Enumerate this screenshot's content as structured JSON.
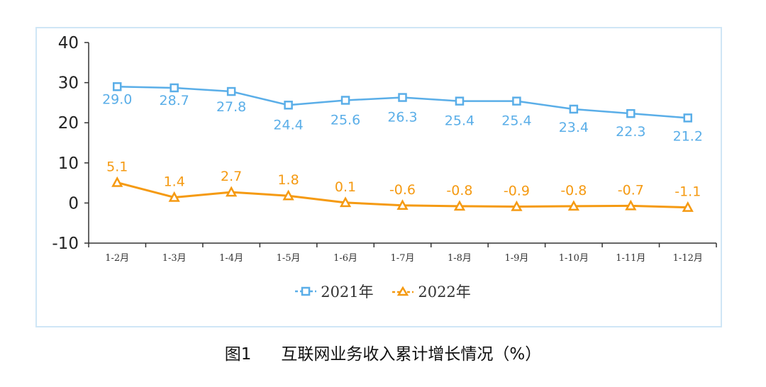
{
  "chart_data": {
    "type": "line",
    "categories": [
      "1-2月",
      "1-3月",
      "1-4月",
      "1-5月",
      "1-6月",
      "1-7月",
      "1-8月",
      "1-9月",
      "1-10月",
      "1-11月",
      "1-12月"
    ],
    "series": [
      {
        "name": "2021年",
        "color": "#5aaee8",
        "marker": "square",
        "values": [
          29.0,
          28.7,
          27.8,
          24.4,
          25.6,
          26.3,
          25.4,
          25.4,
          23.4,
          22.3,
          21.2
        ]
      },
      {
        "name": "2022年",
        "color": "#f59a12",
        "marker": "triangle",
        "values": [
          5.1,
          1.4,
          2.7,
          1.8,
          0.1,
          -0.6,
          -0.8,
          -0.9,
          -0.8,
          -0.7,
          -1.1
        ]
      }
    ],
    "ylim": [
      -10,
      40
    ],
    "yticks": [
      40,
      30,
      20,
      10,
      0,
      -10
    ],
    "grid": false,
    "legend": "bottom",
    "title": "",
    "xlabel": "",
    "ylabel": ""
  },
  "caption": {
    "figure_no": "图1",
    "text": "互联网业务收入累计增长情况（%）"
  }
}
